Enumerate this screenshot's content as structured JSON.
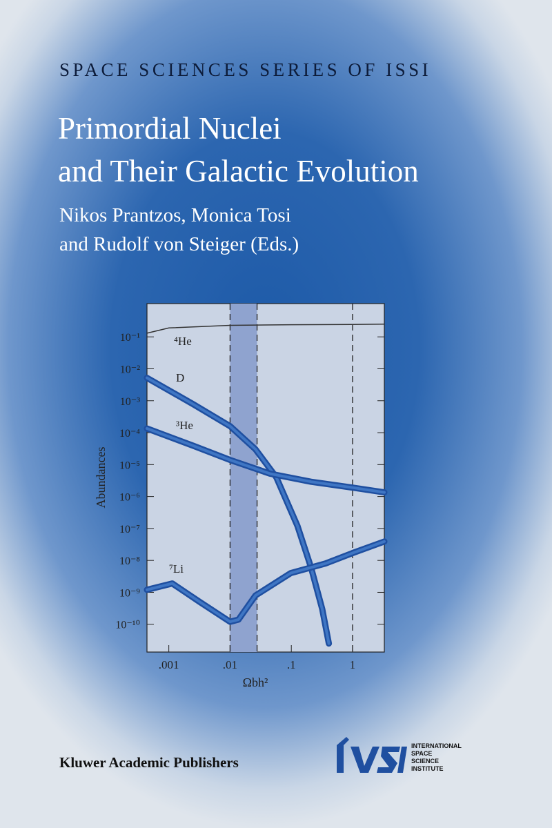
{
  "series_label": "SPACE SCIENCES SERIES OF ISSI",
  "title": [
    "Primordial Nuclei",
    "and Their Galactic Evolution"
  ],
  "editors": [
    "Nikos Prantzos, Monica Tosi",
    "and Rudolf von Steiger (Eds.)"
  ],
  "publisher": "Kluwer Academic Publishers",
  "logo": {
    "lines": [
      "INTERNATIONAL",
      "SPACE",
      "SCIENCE",
      "INSTITUTE"
    ]
  },
  "chart_data": {
    "type": "line",
    "y_label": "Abundances",
    "x_label": "Ωbh²",
    "log_x": true,
    "log_y": true,
    "xlim": [
      0.00044,
      3.3
    ],
    "ylim": [
      1.35e-11,
      1.1
    ],
    "xticks": [
      {
        "value": 0.001,
        "label": ".001"
      },
      {
        "value": 0.01,
        "label": ".01"
      },
      {
        "value": 0.1,
        "label": ".1"
      },
      1
    ],
    "yticks": [
      {
        "value": 0.1,
        "label": "10⁻¹"
      },
      {
        "value": 0.01,
        "label": "10⁻²"
      },
      {
        "value": 0.001,
        "label": "10⁻³"
      },
      {
        "value": 0.0001,
        "label": "10⁻⁴"
      },
      {
        "value": 1e-05,
        "label": "10⁻⁵"
      },
      {
        "value": 1e-06,
        "label": "10⁻⁶"
      },
      {
        "value": 1e-07,
        "label": "10⁻⁷"
      },
      {
        "value": 1e-08,
        "label": "10⁻⁸"
      },
      {
        "value": 1e-09,
        "label": "10⁻⁹"
      },
      {
        "value": 1e-10,
        "label": "10⁻¹⁰"
      }
    ],
    "band": [
      0.01,
      0.0276
    ],
    "band_color": "#8fa3cf",
    "dashed_lines": [
      0.01,
      0.0276,
      1
    ],
    "series": [
      {
        "name": "⁴He",
        "color": "#333333",
        "x": [
          0.00044,
          0.001,
          0.01,
          0.1,
          1,
          3.3
        ],
        "values": [
          0.13,
          0.19,
          0.23,
          0.24,
          0.245,
          0.25
        ]
      },
      {
        "name": "D",
        "color": "#1f4fa0",
        "x": [
          0.00044,
          0.0025,
          0.01,
          0.026,
          0.057,
          0.126,
          0.21,
          0.32,
          0.41
        ],
        "values": [
          0.0052,
          0.00078,
          0.00016,
          3e-05,
          4e-06,
          1.2e-07,
          6e-09,
          3e-10,
          2.5e-11
        ]
      },
      {
        "name": "³He",
        "color": "#1f4fa0",
        "x": [
          0.00044,
          0.0025,
          0.01,
          0.045,
          0.21,
          1,
          3.3
        ],
        "values": [
          0.000135,
          3.9e-05,
          1.4e-05,
          5.2e-06,
          2.9e-06,
          1.9e-06,
          1.35e-06
        ]
      },
      {
        "name": "⁷Li",
        "color": "#1f4fa0",
        "x": [
          0.00044,
          0.00114,
          0.0032,
          0.01,
          0.0137,
          0.026,
          0.098,
          0.36,
          1,
          3.3
        ],
        "values": [
          1.2e-09,
          1.9e-09,
          5e-10,
          1.2e-10,
          1.4e-10,
          8e-10,
          4e-09,
          8e-09,
          1.7e-08,
          3.9e-08
        ]
      }
    ]
  }
}
